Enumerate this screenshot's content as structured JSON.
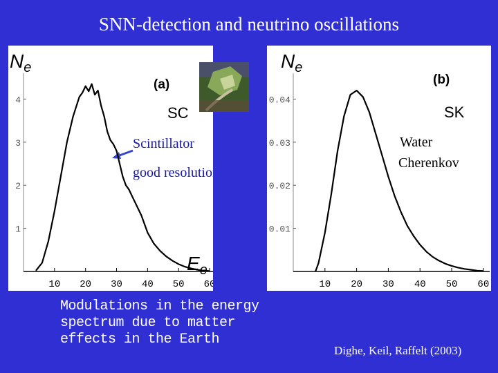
{
  "slide": {
    "title": "SNN-detection and neutrino oscillations",
    "caption_lines": [
      "Modulations in the energy",
      "spectrum due to matter",
      "effects in the Earth"
    ],
    "credit": "Dighe, Keil, Raffelt (2003)",
    "background_color": "#2f2fd4"
  },
  "chart_data": [
    {
      "type": "line",
      "panel_label": "(a)",
      "detector": "SC",
      "ylabel": "N_e",
      "xlabel": "E_e",
      "xlim": [
        0,
        62
      ],
      "ylim": [
        0,
        4.6
      ],
      "xticks": [
        10,
        20,
        30,
        40,
        50,
        60
      ],
      "yticks": [
        1,
        2,
        3,
        4
      ],
      "annotations": [
        "Scintillator",
        "good resolution"
      ],
      "x": [
        4,
        6,
        8,
        10,
        12,
        14,
        16,
        18,
        19,
        20,
        21,
        22,
        23,
        24,
        25,
        26,
        27,
        28,
        29,
        30,
        31,
        32,
        33,
        34,
        35,
        36,
        37,
        38,
        39,
        40,
        42,
        44,
        46,
        48,
        50,
        52,
        54,
        56,
        58,
        60
      ],
      "values": [
        0.02,
        0.2,
        0.7,
        1.4,
        2.2,
        3.0,
        3.6,
        4.05,
        4.15,
        4.3,
        4.18,
        4.35,
        4.1,
        4.2,
        3.85,
        3.6,
        3.25,
        3.05,
        2.95,
        2.8,
        2.5,
        2.2,
        2.0,
        1.9,
        1.75,
        1.6,
        1.45,
        1.3,
        1.1,
        0.9,
        0.65,
        0.48,
        0.35,
        0.25,
        0.17,
        0.11,
        0.07,
        0.04,
        0.02,
        0.01
      ]
    },
    {
      "type": "line",
      "panel_label": "(b)",
      "detector": "SK",
      "ylabel": "N_e",
      "xlabel": "",
      "xlim": [
        0,
        62
      ],
      "ylim": [
        0,
        0.046
      ],
      "xticks": [
        10,
        20,
        30,
        40,
        50,
        60
      ],
      "yticks": [
        "0.01",
        "0.02",
        "0.03",
        "0.04"
      ],
      "annotations": [
        "Water",
        "Cherenkov"
      ],
      "x": [
        7,
        8,
        10,
        12,
        14,
        16,
        18,
        20,
        22,
        24,
        26,
        28,
        30,
        32,
        34,
        36,
        38,
        40,
        42,
        44,
        46,
        48,
        50,
        52,
        54,
        56,
        58,
        60
      ],
      "values": [
        0.0,
        0.002,
        0.009,
        0.018,
        0.028,
        0.036,
        0.041,
        0.042,
        0.0405,
        0.037,
        0.032,
        0.027,
        0.022,
        0.0175,
        0.0138,
        0.0106,
        0.0082,
        0.0062,
        0.0046,
        0.0034,
        0.0025,
        0.0018,
        0.0013,
        0.0009,
        0.0006,
        0.0004,
        0.0002,
        0.0001
      ]
    }
  ]
}
